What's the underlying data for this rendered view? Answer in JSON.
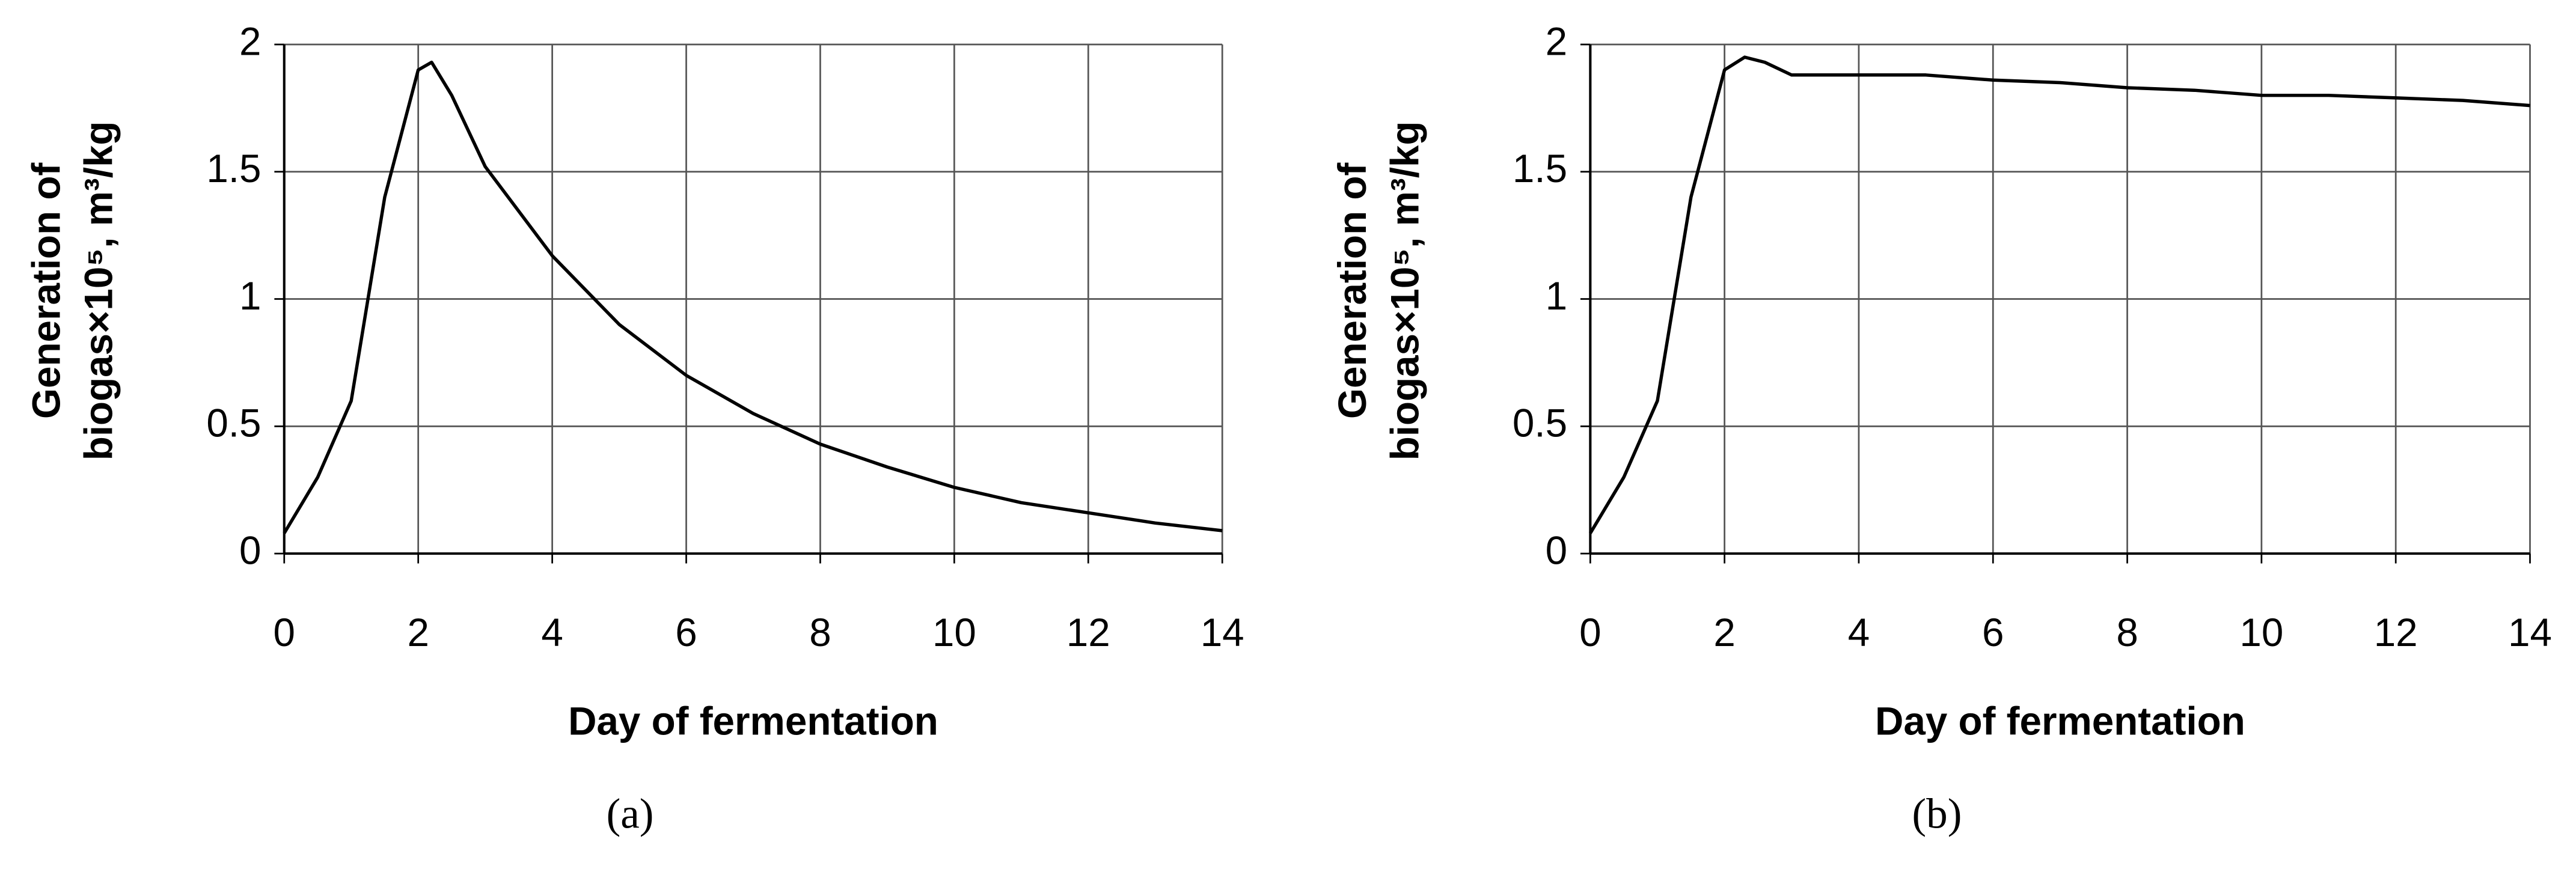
{
  "chart_data": [
    {
      "type": "line",
      "xlabel": "Day of fermentation",
      "ylabel": [
        "Generation of",
        "biogas×10⁵, m³/kg"
      ],
      "panel_label": "(a)",
      "x": [
        0,
        0.5,
        1,
        1.5,
        2,
        2.2,
        2.5,
        3,
        4,
        5,
        6,
        7,
        8,
        9,
        10,
        11,
        12,
        13,
        14
      ],
      "series": [
        {
          "color": "#000000",
          "values": [
            0.08,
            0.3,
            0.6,
            1.4,
            1.9,
            1.93,
            1.8,
            1.52,
            1.17,
            0.9,
            0.7,
            0.55,
            0.43,
            0.34,
            0.26,
            0.2,
            0.16,
            0.12,
            0.09
          ]
        }
      ],
      "xlim": [
        0,
        14
      ],
      "xticks": [
        0,
        2,
        4,
        6,
        8,
        10,
        12,
        14
      ],
      "ylim": [
        0,
        2
      ],
      "yticks": [
        0,
        0.5,
        1,
        1.5,
        2
      ],
      "grid": true
    },
    {
      "type": "line",
      "xlabel": "Day of fermentation",
      "ylabel": [
        "Generation of",
        "biogas×10⁵, m³/kg"
      ],
      "panel_label": "(b)",
      "x": [
        0,
        0.5,
        1,
        1.5,
        2,
        2.3,
        2.6,
        3,
        4,
        5,
        6,
        7,
        8,
        9,
        10,
        11,
        12,
        13,
        14
      ],
      "series": [
        {
          "color": "#000000",
          "values": [
            0.08,
            0.3,
            0.6,
            1.4,
            1.9,
            1.95,
            1.93,
            1.88,
            1.88,
            1.88,
            1.86,
            1.85,
            1.83,
            1.82,
            1.8,
            1.8,
            1.79,
            1.78,
            1.76
          ]
        }
      ],
      "xlim": [
        0,
        14
      ],
      "xticks": [
        0,
        2,
        4,
        6,
        8,
        10,
        12,
        14
      ],
      "ylim": [
        0,
        2
      ],
      "yticks": [
        0,
        0.5,
        1,
        1.5,
        2
      ],
      "grid": true
    }
  ]
}
